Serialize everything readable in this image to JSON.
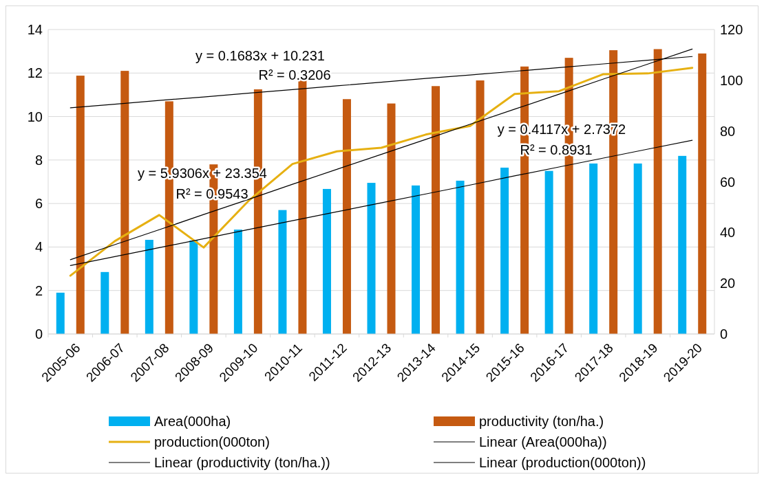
{
  "chart_data": {
    "type": "bar",
    "categories": [
      "2005-06",
      "2006-07",
      "2007-08",
      "2008-09",
      "2009-10",
      "2010-11",
      "2011-12",
      "2012-13",
      "2013-14",
      "2014-15",
      "2015-16",
      "2016-17",
      "2017-18",
      "2018-19",
      "2019-20"
    ],
    "series": [
      {
        "name": "Area(000ha)",
        "color": "#00b0f0",
        "values": [
          1.9,
          2.85,
          4.33,
          4.3,
          4.8,
          5.7,
          6.67,
          6.95,
          6.83,
          7.05,
          7.65,
          7.5,
          7.84,
          7.84,
          8.19
        ]
      },
      {
        "name": "productivity (ton/ha.)",
        "color": "#c55a11",
        "values": [
          11.88,
          12.1,
          10.7,
          7.8,
          11.25,
          11.8,
          10.8,
          10.6,
          11.4,
          11.66,
          12.3,
          12.7,
          13.05,
          13.1,
          12.9
        ]
      },
      {
        "name": "production(000ton)",
        "type": "line",
        "axis": "y2",
        "color": "#e6b012",
        "values": [
          23,
          36.6,
          46.9,
          34.1,
          52.3,
          67,
          72,
          73.4,
          78.6,
          82,
          94.6,
          95.7,
          102.4,
          102.7,
          104.9
        ]
      },
      {
        "name": "Linear (Area(000ha))",
        "type": "line",
        "color": "#000000",
        "values": [
          3.15,
          3.56,
          3.97,
          4.38,
          4.8,
          5.21,
          5.62,
          6.03,
          6.44,
          6.85,
          7.27,
          7.68,
          8.09,
          8.5,
          8.91
        ]
      },
      {
        "name": "Linear (productivity (ton/ha.))",
        "type": "line",
        "color": "#000000",
        "values": [
          10.4,
          10.57,
          10.74,
          10.9,
          11.07,
          11.24,
          11.41,
          11.58,
          11.75,
          11.91,
          12.08,
          12.25,
          12.42,
          12.59,
          12.76
        ]
      },
      {
        "name": "Linear (production(000ton))",
        "type": "line",
        "axis": "y2",
        "color": "#000000",
        "values": [
          29.3,
          35.2,
          41.1,
          47.1,
          53.0,
          59.0,
          64.9,
          70.8,
          76.7,
          82.7,
          88.6,
          94.5,
          100.5,
          106.4,
          112.3
        ]
      }
    ],
    "ylim": [
      0,
      14
    ],
    "yticks": [
      0,
      2,
      4,
      6,
      8,
      10,
      12,
      14
    ],
    "y2lim": [
      0,
      120
    ],
    "y2ticks": [
      0,
      20,
      40,
      60,
      80,
      100,
      120
    ],
    "grid": "y",
    "legend": "bottom",
    "annotations": [
      "y = 0.1683x + 10.231",
      "R² = 0.3206",
      "y = 0.4117x + 2.7372",
      "R² = 0.8931",
      "y = 5.9306x + 23.354",
      "R² = 0.9543"
    ]
  }
}
